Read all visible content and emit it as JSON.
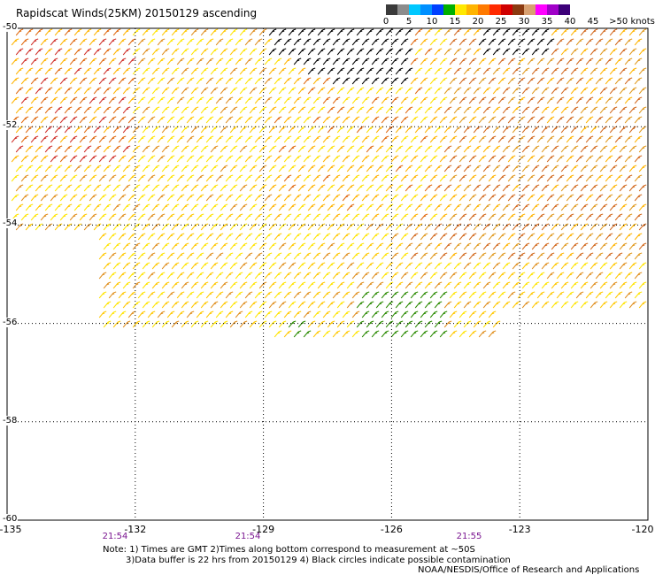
{
  "title": "Rapidscat Winds(25KM) 20150129 ascending",
  "legend": {
    "colors": [
      "#3a3a3a",
      "#8c8c8c",
      "#00c8ff",
      "#0090ff",
      "#0040ff",
      "#00b000",
      "#ffe800",
      "#ffb400",
      "#ff7a00",
      "#ff2a00",
      "#d00000",
      "#8b3a10",
      "#d8a070",
      "#ff00ff",
      "#a000c8",
      "#3c0078"
    ],
    "labels": [
      "0",
      "5",
      "10",
      "15",
      "20",
      "25",
      "30",
      "35",
      "40",
      "45",
      ">50 knots"
    ]
  },
  "map": {
    "lon_range": [
      -135,
      -120
    ],
    "lat_range": [
      -60,
      -50
    ],
    "lon_ticks": [
      "-135",
      "-132",
      "-129",
      "-126",
      "-123",
      "-120"
    ],
    "lat_ticks": [
      "-50",
      "-52",
      "-54",
      "-56",
      "-58",
      "-60"
    ],
    "pass_times": [
      "21:54",
      "21:54",
      "21:55"
    ]
  },
  "notes": {
    "line1": "Note: 1) Times are GMT 2)Times along bottom correspond to measurement at ~50S",
    "line2": "3)Data buffer is 22 hrs from 20150129 4) Black circles indicate possible contamination",
    "credit": "NOAA/NESDIS/Office of Research and Applications"
  }
}
